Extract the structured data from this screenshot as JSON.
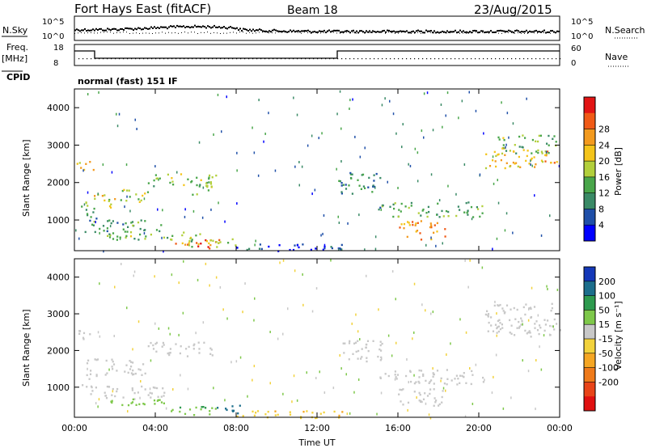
{
  "header": {
    "station": "Fort Hays East (fitACF)",
    "beam": "Beam 18",
    "date": "23/Aug/2015"
  },
  "params": {
    "nsky_label": "N.Sky",
    "nsearch_label": "N.Search",
    "nsky_ticks": [
      "10^5",
      "10^0"
    ],
    "nsearch_ticks": [
      "10^5",
      "10^0"
    ],
    "freq_label": "Freq.",
    "freq_unit": "[MHz]",
    "freq_ticks": [
      "18",
      "8"
    ],
    "nave_label": "Nave",
    "nave_ticks": [
      "60",
      "0"
    ],
    "cpid_label": "CPID",
    "cpid_value": "normal (fast) 151 IF"
  },
  "colorbars": {
    "power": {
      "label": "Power [dB]",
      "ticks": [
        "4",
        "8",
        "12",
        "16",
        "20",
        "24",
        "28"
      ],
      "colors": [
        "#0000ff",
        "#1f4fa8",
        "#3a8a66",
        "#49a64a",
        "#b2cf3b",
        "#f4c41a",
        "#f39a1e",
        "#f05a16",
        "#e21414"
      ]
    },
    "velocity": {
      "label": "Velocity [m s⁻¹]",
      "ticks": [
        "200",
        "100",
        "50",
        "15",
        "-15",
        "-50",
        "-100",
        "-200"
      ],
      "colors": [
        "#1438b8",
        "#1c6e8c",
        "#2e9a4e",
        "#7ec84a",
        "#c8c8c8",
        "#f2d23c",
        "#f5a623",
        "#ef7a1a",
        "#e84418",
        "#e01010"
      ]
    }
  },
  "chart_data": [
    {
      "type": "heatmap",
      "name": "power",
      "ylabel": "Slant Range [km]",
      "ylim": [
        180,
        4500
      ],
      "yticks": [
        1000,
        2000,
        3000,
        4000
      ],
      "xlim": [
        0,
        24
      ],
      "xticks": [
        0,
        4,
        8,
        12,
        16,
        20,
        24
      ],
      "regions": [
        {
          "t0": 0.1,
          "t1": 1.0,
          "r0": 2300,
          "r1": 2600,
          "v": 20
        },
        {
          "t0": 0.3,
          "t1": 1.1,
          "r0": 1000,
          "r1": 1400,
          "v": 12
        },
        {
          "t0": 0.5,
          "t1": 2.0,
          "r0": 1350,
          "r1": 1750,
          "v": 18
        },
        {
          "t0": 2.0,
          "t1": 3.6,
          "r0": 1500,
          "r1": 1850,
          "v": 16
        },
        {
          "t0": 3.6,
          "t1": 7.0,
          "r0": 1900,
          "r1": 2250,
          "v": 14
        },
        {
          "t0": 5.8,
          "t1": 6.8,
          "r0": 1700,
          "r1": 2100,
          "v": 12
        },
        {
          "t0": 0.5,
          "t1": 4.5,
          "r0": 700,
          "r1": 1050,
          "v": 12
        },
        {
          "t0": 1.5,
          "t1": 6.5,
          "r0": 450,
          "r1": 700,
          "v": 14
        },
        {
          "t0": 4.6,
          "t1": 7.2,
          "r0": 250,
          "r1": 500,
          "v": 24
        },
        {
          "t0": 5.5,
          "t1": 8.0,
          "r0": 300,
          "r1": 550,
          "v": 16
        },
        {
          "t0": 8.0,
          "t1": 13.5,
          "r0": 180,
          "r1": 380,
          "v": 6
        },
        {
          "t0": 13.0,
          "t1": 15.2,
          "r0": 1700,
          "r1": 2300,
          "v": 10
        },
        {
          "t0": 15.0,
          "t1": 20.3,
          "r0": 1100,
          "r1": 1500,
          "v": 12
        },
        {
          "t0": 16.0,
          "t1": 18.3,
          "r0": 500,
          "r1": 1000,
          "v": 22
        },
        {
          "t0": 20.3,
          "t1": 24.0,
          "r0": 2400,
          "r1": 2900,
          "v": 20
        },
        {
          "t0": 20.8,
          "t1": 23.8,
          "r0": 2800,
          "r1": 3300,
          "v": 14
        }
      ]
    },
    {
      "type": "heatmap",
      "name": "velocity",
      "ylabel": "Slant Range [km]",
      "xlabel": "Time UT",
      "ylim": [
        180,
        4500
      ],
      "yticks": [
        1000,
        2000,
        3000,
        4000
      ],
      "xlim": [
        0,
        24
      ],
      "xticklabels": [
        "00:00",
        "04:00",
        "08:00",
        "12:00",
        "16:00",
        "20:00",
        "00:00"
      ],
      "xticks": [
        0,
        4,
        8,
        12,
        16,
        20,
        24
      ],
      "regions": [
        {
          "t0": 0.1,
          "t1": 1.0,
          "r0": 2300,
          "r1": 2600,
          "v": 0
        },
        {
          "t0": 0.3,
          "t1": 1.1,
          "r0": 1000,
          "r1": 1400,
          "v": 0
        },
        {
          "t0": 0.5,
          "t1": 3.5,
          "r0": 1350,
          "r1": 1800,
          "v": 0
        },
        {
          "t0": 3.6,
          "t1": 6.8,
          "r0": 1850,
          "r1": 2250,
          "v": 0
        },
        {
          "t0": 0.5,
          "t1": 4.5,
          "r0": 700,
          "r1": 1050,
          "v": 0
        },
        {
          "t0": 1.5,
          "t1": 4.5,
          "r0": 450,
          "r1": 700,
          "v": 30
        },
        {
          "t0": 4.5,
          "t1": 7.0,
          "r0": 250,
          "r1": 500,
          "v": 40
        },
        {
          "t0": 7.0,
          "t1": 8.2,
          "r0": 250,
          "r1": 550,
          "v": 180
        },
        {
          "t0": 8.0,
          "t1": 13.5,
          "r0": 180,
          "r1": 380,
          "v": -40
        },
        {
          "t0": 13.0,
          "t1": 15.2,
          "r0": 1700,
          "r1": 2300,
          "v": 0
        },
        {
          "t0": 15.0,
          "t1": 20.3,
          "r0": 1100,
          "r1": 1500,
          "v": 0
        },
        {
          "t0": 16.0,
          "t1": 18.3,
          "r0": 500,
          "r1": 1000,
          "v": 0
        },
        {
          "t0": 20.3,
          "t1": 24.0,
          "r0": 2400,
          "r1": 3300,
          "v": 0
        }
      ]
    }
  ]
}
